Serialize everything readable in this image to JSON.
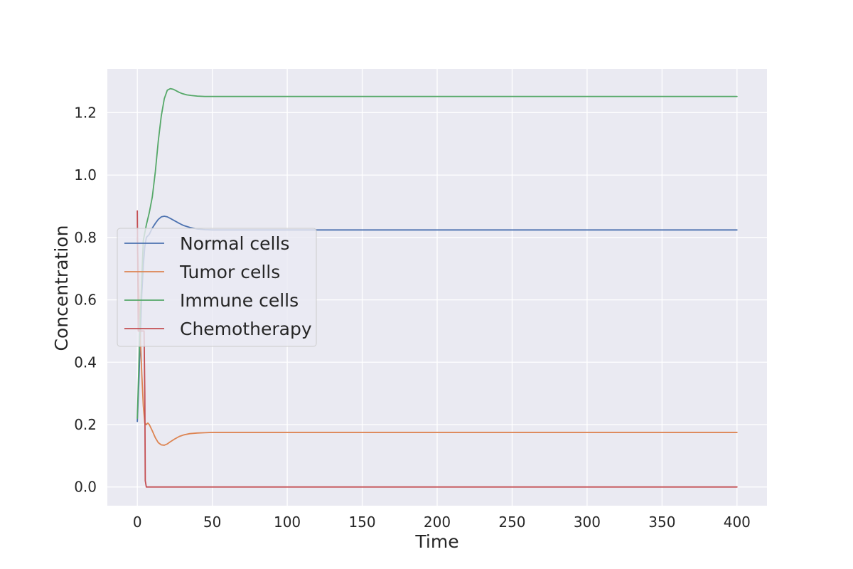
{
  "chart_data": {
    "type": "line",
    "title": "",
    "xlabel": "Time",
    "ylabel": "Concentration",
    "xlim": [
      -20,
      420
    ],
    "ylim": [
      -0.06,
      1.34
    ],
    "xticks": [
      0,
      50,
      100,
      150,
      200,
      250,
      300,
      350,
      400
    ],
    "yticks": [
      0.0,
      0.2,
      0.4,
      0.6,
      0.8,
      1.0,
      1.2
    ],
    "grid": true,
    "legend_position": "center-left",
    "colors": {
      "background": "#eaeaf2",
      "grid": "#ffffff",
      "text": "#262626"
    },
    "series": [
      {
        "name": "Normal cells",
        "color": "#4c72b0",
        "x": [
          0,
          1,
          2,
          3,
          4,
          5,
          6,
          8,
          10,
          12,
          14,
          16,
          18,
          20,
          22,
          25,
          28,
          31,
          35,
          40,
          45,
          50,
          60,
          80,
          100,
          150,
          200,
          300,
          400
        ],
        "y": [
          0.21,
          0.33,
          0.48,
          0.62,
          0.71,
          0.77,
          0.8,
          0.81,
          0.83,
          0.845,
          0.858,
          0.866,
          0.868,
          0.866,
          0.861,
          0.853,
          0.845,
          0.838,
          0.832,
          0.827,
          0.825,
          0.824,
          0.824,
          0.824,
          0.824,
          0.824,
          0.824,
          0.824,
          0.824
        ]
      },
      {
        "name": "Tumor cells",
        "color": "#dd8452",
        "x": [
          0,
          1,
          2,
          3,
          4,
          5,
          6,
          7,
          8,
          10,
          12,
          14,
          16,
          18,
          20,
          22,
          25,
          28,
          31,
          35,
          40,
          45,
          50,
          60,
          80,
          100,
          150,
          200,
          300,
          400
        ],
        "y": [
          0.8,
          0.62,
          0.48,
          0.36,
          0.26,
          0.205,
          0.2,
          0.205,
          0.2,
          0.18,
          0.158,
          0.142,
          0.135,
          0.134,
          0.138,
          0.145,
          0.154,
          0.162,
          0.167,
          0.171,
          0.173,
          0.174,
          0.175,
          0.175,
          0.175,
          0.175,
          0.175,
          0.175,
          0.175,
          0.175
        ]
      },
      {
        "name": "Immune cells",
        "color": "#55a868",
        "x": [
          0,
          2,
          4,
          6,
          8,
          10,
          12,
          14,
          16,
          18,
          20,
          22,
          24,
          26,
          28,
          30,
          33,
          36,
          40,
          45,
          50,
          60,
          80,
          100,
          150,
          200,
          300,
          400
        ],
        "y": [
          0.22,
          0.55,
          0.79,
          0.84,
          0.88,
          0.93,
          1.01,
          1.11,
          1.19,
          1.245,
          1.272,
          1.277,
          1.275,
          1.27,
          1.265,
          1.261,
          1.257,
          1.255,
          1.253,
          1.252,
          1.252,
          1.252,
          1.252,
          1.252,
          1.252,
          1.252,
          1.252,
          1.252
        ]
      },
      {
        "name": "Chemotherapy",
        "color": "#c44e52",
        "x": [
          0,
          0.6,
          1.2,
          1.8,
          2,
          3,
          4,
          4.5,
          5,
          5.3,
          6,
          8,
          10,
          50,
          100,
          200,
          300,
          400
        ],
        "y": [
          0.885,
          0.5,
          0.5,
          0.5,
          0.5,
          0.5,
          0.5,
          0.5,
          0.3,
          0.02,
          0.0,
          0.0,
          0.0,
          0.0,
          0.0,
          0.0,
          0.0,
          0.0
        ]
      }
    ]
  }
}
